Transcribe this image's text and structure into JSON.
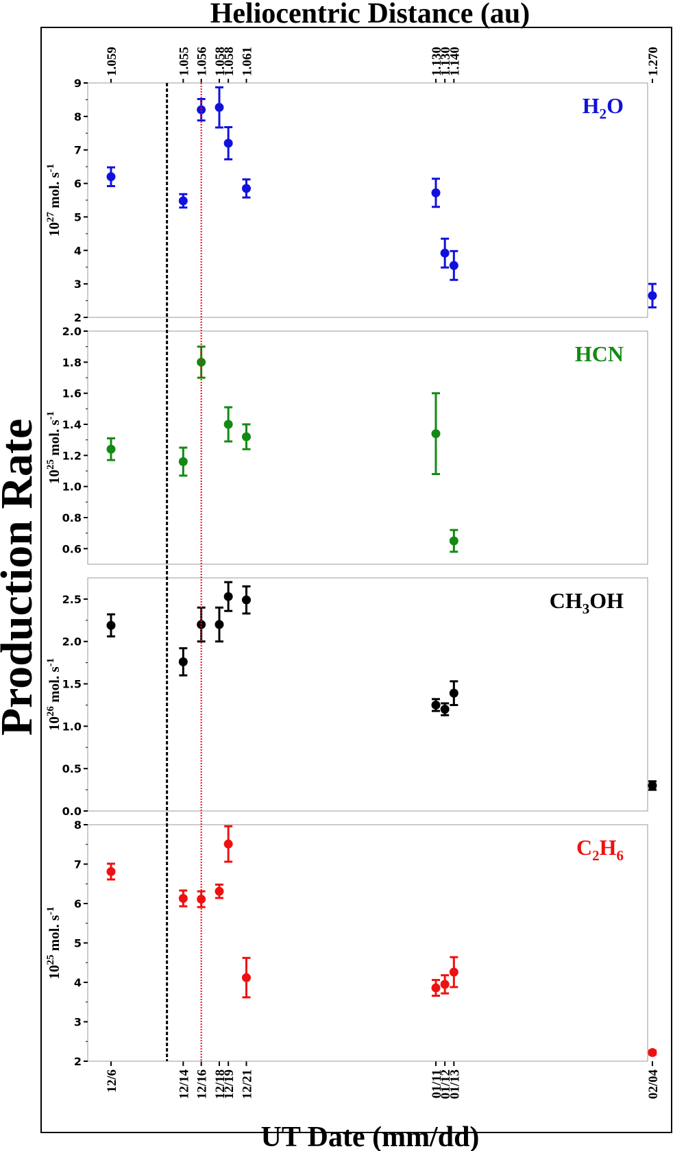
{
  "figure": {
    "ylabel": "Production Rate",
    "top_axis_title": "Heliocentric Distance (au)",
    "bottom_axis_title": "UT Date (mm/dd)"
  },
  "colors": {
    "axis": "#000000",
    "panel_border": "#999999",
    "outer_border": "#000000",
    "dashed_line": "#000000",
    "dotted_line": "#ff0000"
  },
  "chart_data": [
    {
      "type": "scatter",
      "molecule": "H2O",
      "label": {
        "parts": [
          {
            "t": "H"
          },
          {
            "t": "2",
            "sub": true
          },
          {
            "t": "O"
          }
        ]
      },
      "ylabel": {
        "base": "10",
        "exp": "27",
        "rest": " mol. s",
        "exp2": "-1"
      },
      "color": "#1111dd",
      "ylim": [
        2,
        9
      ],
      "yticks": [
        "2",
        "3",
        "4",
        "5",
        "6",
        "7",
        "8",
        "9"
      ],
      "points": [
        {
          "x": "12/6",
          "y": 6.2,
          "err": 0.28
        },
        {
          "x": "12/14",
          "y": 5.48,
          "err": 0.2
        },
        {
          "x": "12/16",
          "y": 8.2,
          "err": 0.32
        },
        {
          "x": "12/18",
          "y": 8.27,
          "err": 0.6
        },
        {
          "x": "12/19",
          "y": 7.2,
          "err": 0.48
        },
        {
          "x": "12/21",
          "y": 5.85,
          "err": 0.27
        },
        {
          "x": "01/11",
          "y": 5.72,
          "err": 0.42
        },
        {
          "x": "01/12",
          "y": 3.92,
          "err": 0.43
        },
        {
          "x": "01/13",
          "y": 3.55,
          "err": 0.43
        },
        {
          "x": "02/04",
          "y": 2.65,
          "err": 0.35
        }
      ]
    },
    {
      "type": "scatter",
      "molecule": "HCN",
      "label": {
        "parts": [
          {
            "t": "HCN"
          }
        ]
      },
      "ylabel": {
        "base": "10",
        "exp": "25",
        "rest": " mol. s",
        "exp2": "-1"
      },
      "color": "#138a13",
      "ylim": [
        0.5,
        2.0
      ],
      "yticks": [
        "0.6",
        "0.8",
        "1.0",
        "1.2",
        "1.4",
        "1.6",
        "1.8",
        "2.0"
      ],
      "points": [
        {
          "x": "12/6",
          "y": 1.24,
          "err": 0.07
        },
        {
          "x": "12/14",
          "y": 1.16,
          "err": 0.09
        },
        {
          "x": "12/16",
          "y": 1.8,
          "err": 0.1
        },
        {
          "x": "12/19",
          "y": 1.4,
          "err": 0.11
        },
        {
          "x": "12/21",
          "y": 1.32,
          "err": 0.08
        },
        {
          "x": "01/11",
          "y": 1.34,
          "err": 0.26
        },
        {
          "x": "01/13",
          "y": 0.65,
          "err": 0.07
        }
      ]
    },
    {
      "type": "scatter",
      "molecule": "CH3OH",
      "label": {
        "parts": [
          {
            "t": "CH"
          },
          {
            "t": "3",
            "sub": true
          },
          {
            "t": "OH"
          }
        ]
      },
      "ylabel": {
        "base": "10",
        "exp": "26",
        "rest": " mol. s",
        "exp2": "-1"
      },
      "color": "#000000",
      "ylim": [
        0.0,
        2.75
      ],
      "yticks": [
        "0.0",
        "0.5",
        "1.0",
        "1.5",
        "2.0",
        "2.5"
      ],
      "points": [
        {
          "x": "12/6",
          "y": 2.19,
          "err": 0.13
        },
        {
          "x": "12/14",
          "y": 1.76,
          "err": 0.16
        },
        {
          "x": "12/16",
          "y": 2.2,
          "err": 0.2
        },
        {
          "x": "12/18",
          "y": 2.2,
          "err": 0.2
        },
        {
          "x": "12/19",
          "y": 2.53,
          "err": 0.17
        },
        {
          "x": "12/21",
          "y": 2.49,
          "err": 0.16
        },
        {
          "x": "01/11",
          "y": 1.25,
          "err": 0.07
        },
        {
          "x": "01/12",
          "y": 1.2,
          "err": 0.07
        },
        {
          "x": "01/13",
          "y": 1.39,
          "err": 0.14
        },
        {
          "x": "02/04",
          "y": 0.3,
          "err": 0.05
        }
      ]
    },
    {
      "type": "scatter",
      "molecule": "C2H6",
      "label": {
        "parts": [
          {
            "t": "C"
          },
          {
            "t": "2",
            "sub": true
          },
          {
            "t": "H"
          },
          {
            "t": "6",
            "sub": true
          }
        ]
      },
      "ylabel": {
        "base": "10",
        "exp": "25",
        "rest": " mol. s",
        "exp2": "-1"
      },
      "color": "#ee1111",
      "ylim": [
        2,
        8
      ],
      "yticks": [
        "2",
        "3",
        "4",
        "5",
        "6",
        "7",
        "8"
      ],
      "points": [
        {
          "x": "12/6",
          "y": 6.81,
          "err": 0.2
        },
        {
          "x": "12/14",
          "y": 6.13,
          "err": 0.2
        },
        {
          "x": "12/16",
          "y": 6.11,
          "err": 0.2
        },
        {
          "x": "12/18",
          "y": 6.31,
          "err": 0.17
        },
        {
          "x": "12/19",
          "y": 7.51,
          "err": 0.45
        },
        {
          "x": "12/21",
          "y": 4.12,
          "err": 0.5
        },
        {
          "x": "01/11",
          "y": 3.86,
          "err": 0.2
        },
        {
          "x": "01/12",
          "y": 3.95,
          "err": 0.23
        },
        {
          "x": "01/13",
          "y": 4.26,
          "err": 0.38
        },
        {
          "x": "02/04",
          "y": 2.22,
          "err": 0.05
        }
      ]
    }
  ],
  "x_axis": {
    "dates": [
      {
        "label": "12/6",
        "day": 0
      },
      {
        "label": "12/14",
        "day": 8
      },
      {
        "label": "12/16",
        "day": 10
      },
      {
        "label": "12/18",
        "day": 12
      },
      {
        "label": "12/19",
        "day": 13
      },
      {
        "label": "12/21",
        "day": 15
      },
      {
        "label": "01/11",
        "day": 36
      },
      {
        "label": "01/12",
        "day": 37
      },
      {
        "label": "01/13",
        "day": 38
      },
      {
        "label": "02/04",
        "day": 60
      }
    ],
    "heliocentric_ticks": [
      {
        "label": "1.059",
        "date": "12/6"
      },
      {
        "label": "1.055",
        "date": "12/14"
      },
      {
        "label": "1.056",
        "date": "12/16"
      },
      {
        "label": "1.058",
        "date": "12/18"
      },
      {
        "label": "1.058",
        "date": "12/19"
      },
      {
        "label": "1.061",
        "date": "12/21"
      },
      {
        "label": "1.130",
        "date": "01/11"
      },
      {
        "label": "1.130",
        "date": "01/12"
      },
      {
        "label": "1.140",
        "date": "01/13"
      },
      {
        "label": "1.270",
        "date": "02/04"
      }
    ],
    "vertical_markers": [
      {
        "style": "dashed",
        "day": 6.2
      },
      {
        "style": "dotted",
        "date": "12/16"
      }
    ]
  }
}
